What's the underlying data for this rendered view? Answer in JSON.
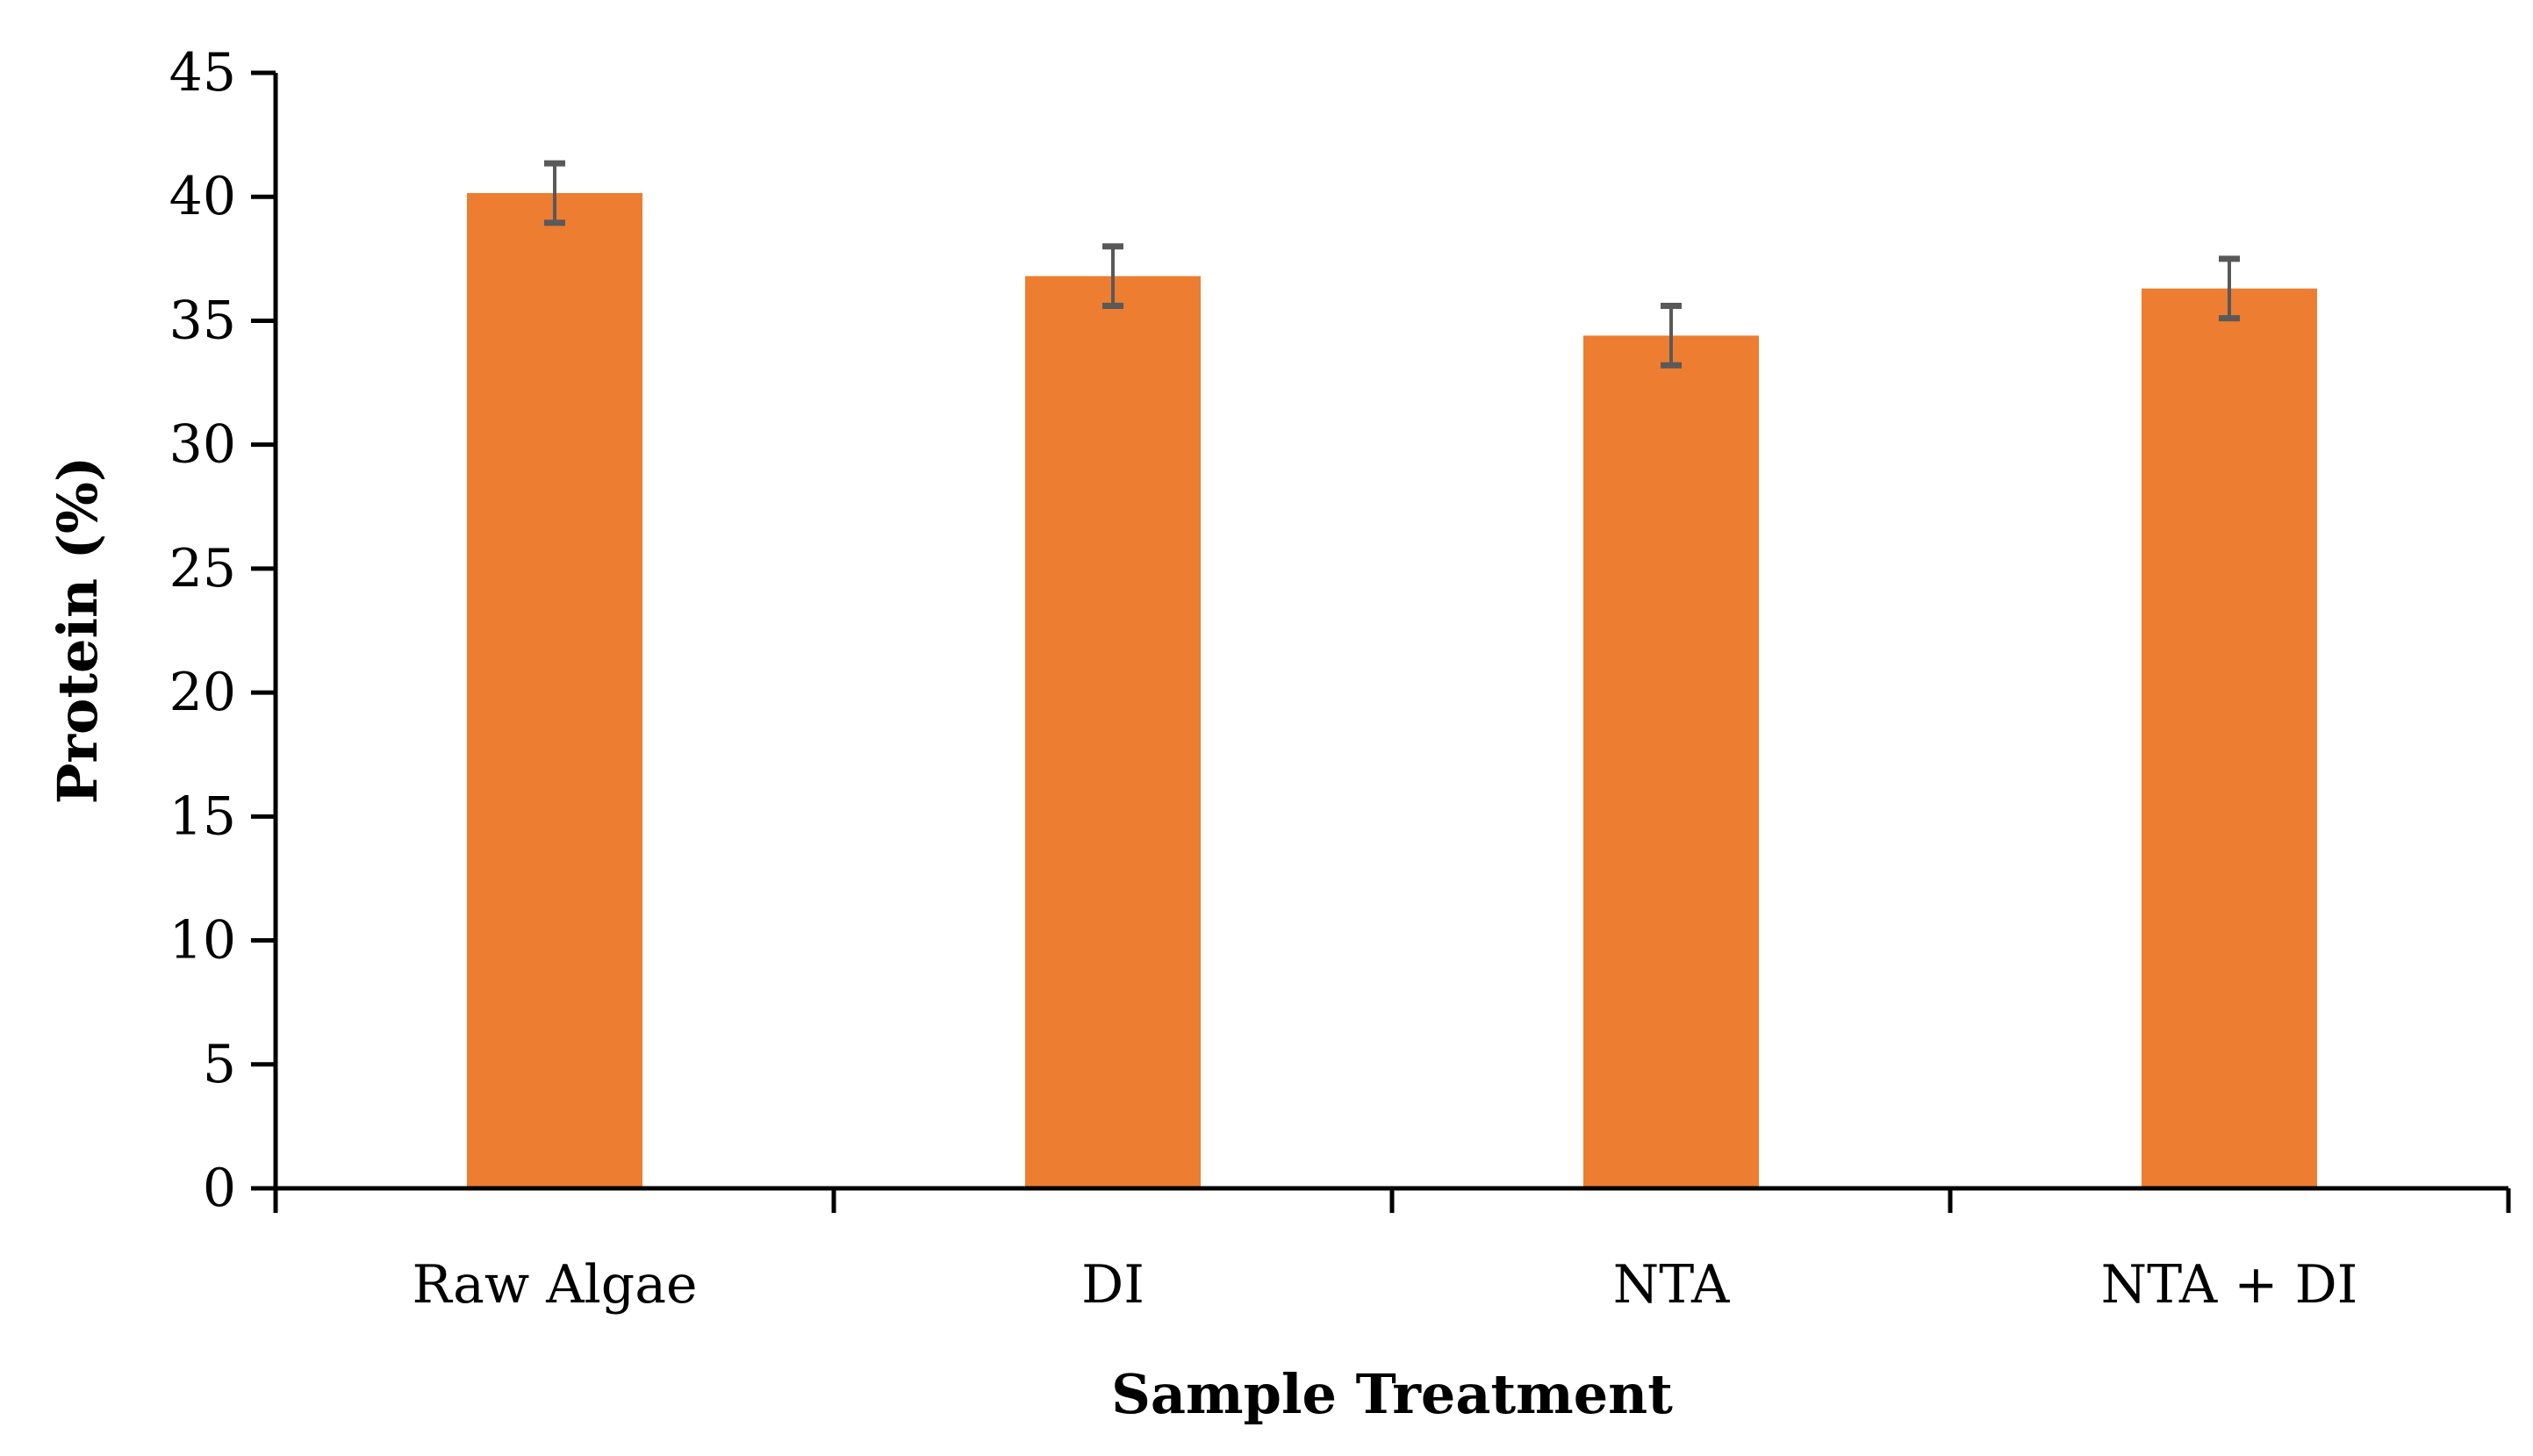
{
  "chart_data": {
    "type": "bar",
    "title": "",
    "xlabel": "Sample Treatment",
    "ylabel": "Protein (%)",
    "categories": [
      "Raw Algae",
      "DI",
      "NTA",
      "NTA + DI"
    ],
    "values": [
      40.15,
      36.8,
      34.4,
      36.3
    ],
    "errors": [
      1.2,
      1.2,
      1.2,
      1.2
    ],
    "ylim": [
      0,
      45
    ],
    "yticks": [
      0,
      5,
      10,
      15,
      20,
      25,
      30,
      35,
      40,
      45
    ],
    "grid": false,
    "legend": "none",
    "bar_color": "#ED7D31",
    "error_color": "#595959"
  }
}
